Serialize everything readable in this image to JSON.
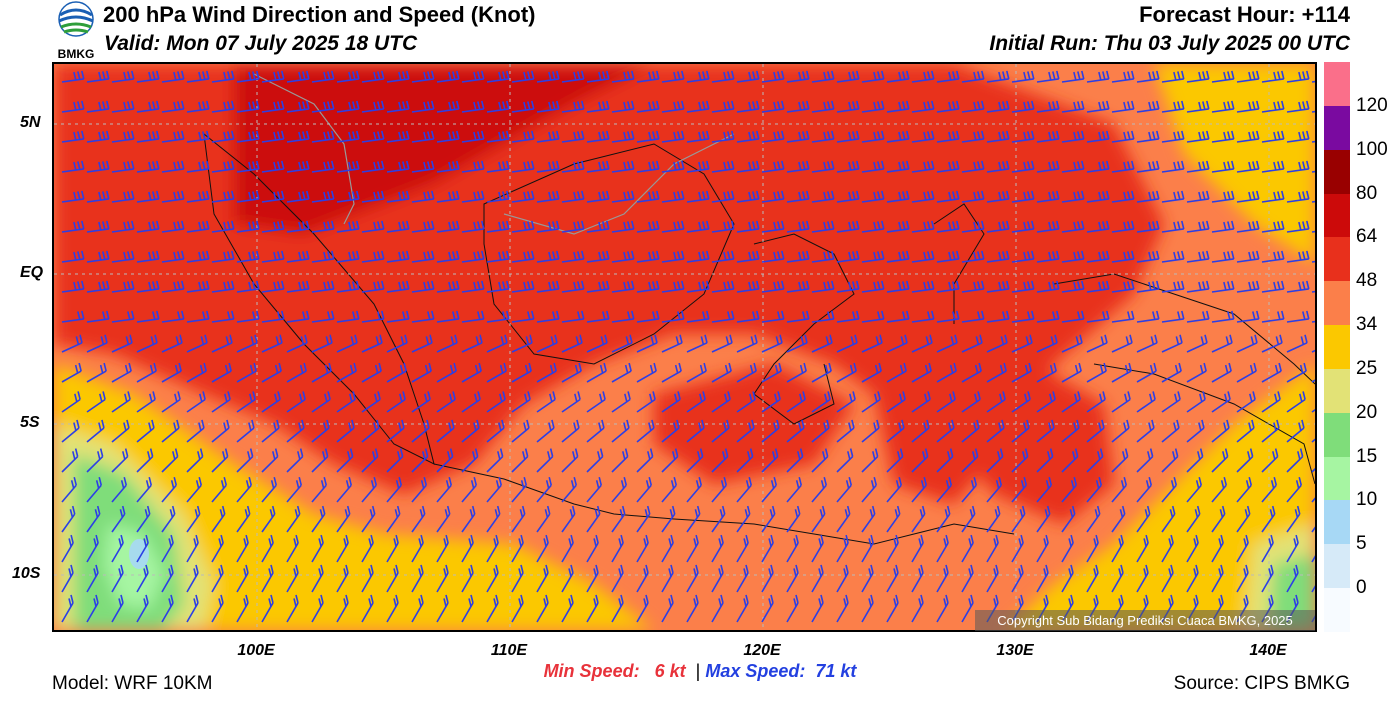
{
  "header": {
    "title": "200 hPa Wind Direction and Speed (Knot)",
    "valid": "Valid: Mon 07 July 2025 18 UTC",
    "forecast_hour": "Forecast Hour: +114",
    "initial_run": "Initial Run: Thu 03 July 2025 00 UTC",
    "logo_text": "BMKG"
  },
  "axes": {
    "lat_labels": [
      "5N",
      "EQ",
      "5S",
      "10S"
    ],
    "lon_labels": [
      "100E",
      "110E",
      "120E",
      "130E",
      "140E"
    ]
  },
  "colorbar": {
    "colors": [
      "#f7fbff",
      "#d6eaf8",
      "#a7d8f5",
      "#a6f5a2",
      "#7fdd7a",
      "#e2e276",
      "#fbc800",
      "#fb7f4a",
      "#e8301c",
      "#cc0a0a",
      "#990000",
      "#7a0aa0",
      "#fa6f8a"
    ],
    "labels": [
      "0",
      "5",
      "10",
      "15",
      "20",
      "25",
      "34",
      "48",
      "64",
      "80",
      "100",
      "120"
    ]
  },
  "copyright": "Copyright Sub Bidang Prediksi Cuaca BMKG, 2025",
  "footer": {
    "model": "Model: WRF 10KM",
    "source": "Source: CIPS BMKG",
    "min_label": "Min Speed:",
    "min_value": "6 kt",
    "separator": "|",
    "max_label": "Max Speed:",
    "max_value": "71 kt"
  }
}
